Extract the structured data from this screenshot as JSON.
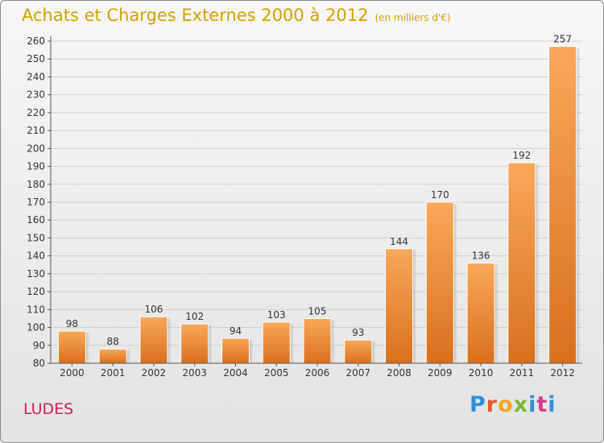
{
  "header": {
    "title": "Achats et Charges Externes 2000 à 2012",
    "unit": "(en milliers d'€)"
  },
  "footer": {
    "place": "LUDES",
    "brand": "Proxiti"
  },
  "colors": {
    "bar_top": "#f9a85a",
    "bar_bottom": "#d9701c",
    "grid": "#cfcfcf",
    "title": "#d4a100",
    "place": "#cc2255"
  },
  "chart_data": {
    "type": "bar",
    "title": "Achats et Charges Externes 2000 à 2012",
    "subtitle": "(en milliers d'€)",
    "categories": [
      "2000",
      "2001",
      "2002",
      "2003",
      "2004",
      "2005",
      "2006",
      "2007",
      "2008",
      "2009",
      "2010",
      "2011",
      "2012"
    ],
    "values": [
      98,
      88,
      106,
      102,
      94,
      103,
      105,
      93,
      144,
      170,
      136,
      192,
      257
    ],
    "ylim": [
      80,
      260
    ],
    "ytick_step": 10,
    "grid": true,
    "legend": "none"
  }
}
